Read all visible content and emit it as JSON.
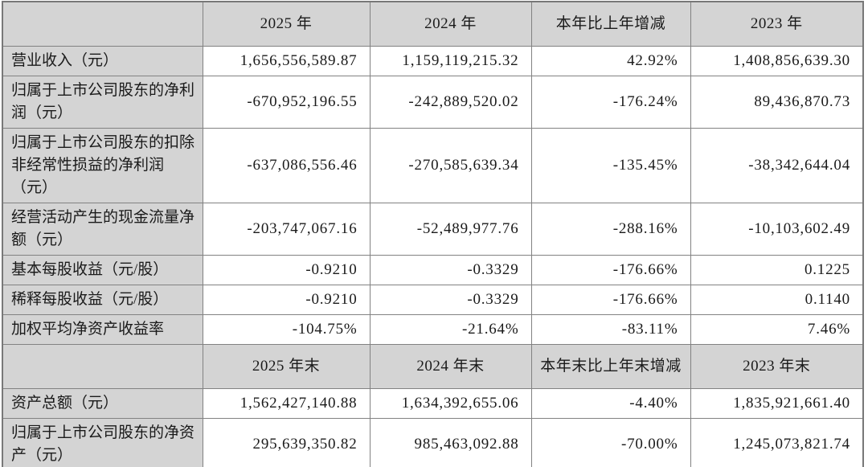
{
  "colors": {
    "header_bg": "#d4d4d4",
    "label_bg": "#d4d4d4",
    "cell_bg": "#ffffff",
    "grid_line": "#828282",
    "text": "#1a1a1a"
  },
  "table": {
    "sections": [
      {
        "header": [
          "",
          "2025 年",
          "2024 年",
          "本年比上年增减",
          "2023 年"
        ],
        "rows": [
          {
            "label": "营业收入（元）",
            "values": [
              "1,656,556,589.87",
              "1,159,119,215.32",
              "42.92%",
              "1,408,856,639.30"
            ]
          },
          {
            "label": "归属于上市公司股东的净利润（元）",
            "values": [
              "-670,952,196.55",
              "-242,889,520.02",
              "-176.24%",
              "89,436,870.73"
            ]
          },
          {
            "label": "归属于上市公司股东的扣除非经常性损益的净利润（元）",
            "values": [
              "-637,086,556.46",
              "-270,585,639.34",
              "-135.45%",
              "-38,342,644.04"
            ]
          },
          {
            "label": "经营活动产生的现金流量净额（元）",
            "values": [
              "-203,747,067.16",
              "-52,489,977.76",
              "-288.16%",
              "-10,103,602.49"
            ]
          },
          {
            "label": "基本每股收益（元/股）",
            "values": [
              "-0.9210",
              "-0.3329",
              "-176.66%",
              "0.1225"
            ]
          },
          {
            "label": "稀释每股收益（元/股）",
            "values": [
              "-0.9210",
              "-0.3329",
              "-176.66%",
              "0.1140"
            ]
          },
          {
            "label": "加权平均净资产收益率",
            "values": [
              "-104.75%",
              "-21.64%",
              "-83.11%",
              "7.46%"
            ]
          }
        ]
      },
      {
        "header": [
          "",
          "2025 年末",
          "2024 年末",
          "本年末比上年末增减",
          "2023 年末"
        ],
        "rows": [
          {
            "label": "资产总额（元）",
            "values": [
              "1,562,427,140.88",
              "1,634,392,655.06",
              "-4.40%",
              "1,835,921,661.40"
            ]
          },
          {
            "label": "归属于上市公司股东的净资产（元）",
            "values": [
              "295,639,350.82",
              "985,463,092.88",
              "-70.00%",
              "1,245,073,821.74"
            ]
          }
        ]
      }
    ]
  }
}
